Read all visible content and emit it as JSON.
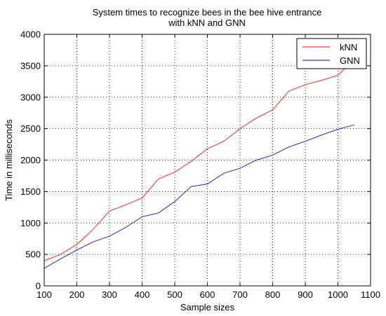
{
  "chart_data": {
    "type": "line",
    "title": [
      "System times to recognize bees in the bee hive entrance",
      "with kNN and GNN"
    ],
    "xlabel": "Sample sizes",
    "ylabel": "Time in milliseconds",
    "xlim": [
      100,
      1100
    ],
    "ylim": [
      0,
      4000
    ],
    "xticks": [
      100,
      200,
      300,
      400,
      500,
      600,
      700,
      800,
      900,
      1000,
      1100
    ],
    "yticks": [
      0,
      500,
      1000,
      1500,
      2000,
      2500,
      3000,
      3500,
      4000
    ],
    "grid": true,
    "legend_position": "top-right",
    "series": [
      {
        "name": "kNN",
        "color": "#ff0000",
        "x": [
          100,
          150,
          200,
          250,
          300,
          350,
          400,
          450,
          500,
          550,
          600,
          650,
          700,
          750,
          800,
          850,
          900,
          950,
          1000,
          1050
        ],
        "y": [
          400,
          500,
          660,
          900,
          1190,
          1290,
          1400,
          1700,
          1810,
          1980,
          2180,
          2300,
          2500,
          2670,
          2800,
          3100,
          3200,
          3270,
          3350,
          3600
        ]
      },
      {
        "name": "GNN",
        "color": "#0000cc",
        "x": [
          100,
          150,
          200,
          250,
          300,
          350,
          400,
          450,
          500,
          550,
          600,
          650,
          700,
          750,
          800,
          850,
          900,
          950,
          1000,
          1050
        ],
        "y": [
          280,
          430,
          570,
          700,
          790,
          930,
          1100,
          1160,
          1340,
          1580,
          1620,
          1790,
          1870,
          2000,
          2080,
          2210,
          2300,
          2400,
          2490,
          2560
        ]
      }
    ]
  }
}
